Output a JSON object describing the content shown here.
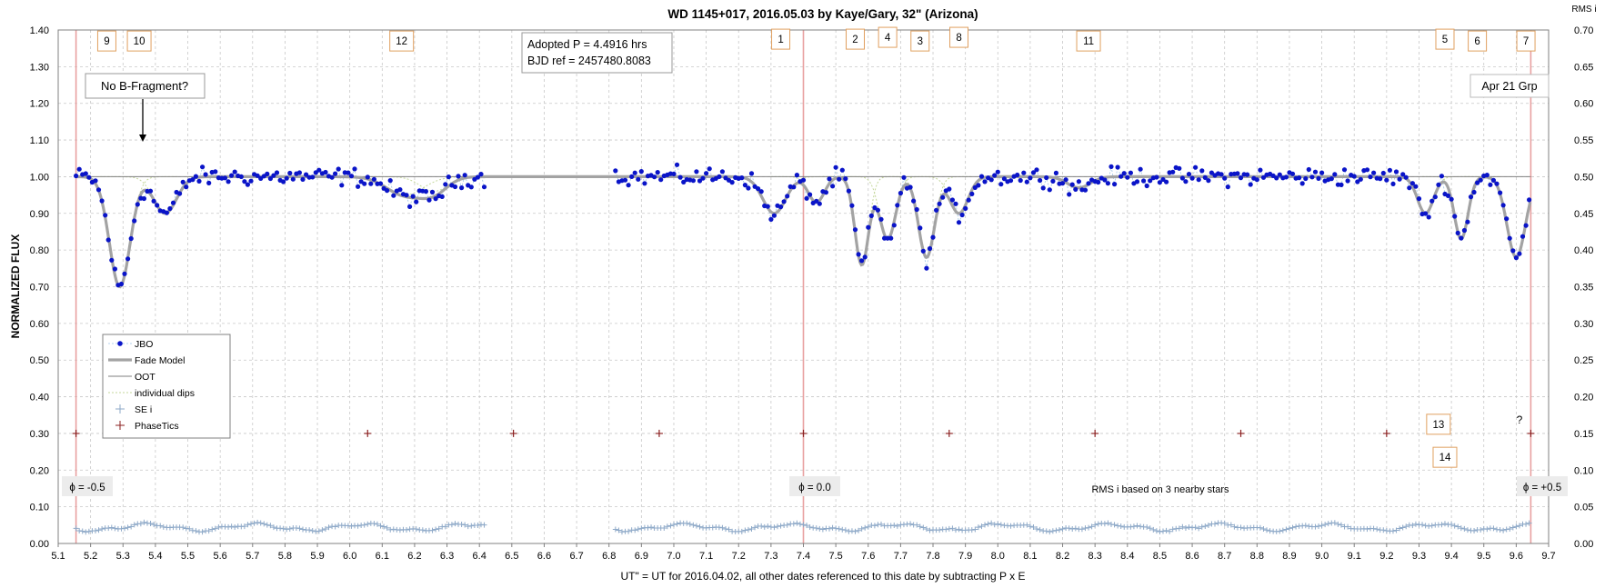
{
  "chart_data": {
    "type": "scatter",
    "title": "WD 1145+017,  2016.05.03  by Kaye/Gary, 32\" (Arizona)",
    "xlabel": "UT\" = UT for 2016.04.02, all other dates referenced to this date by subtracting P x E",
    "ylabel": "NORMALIZED  FLUX",
    "y2label": "RMS i",
    "xlim": [
      5.1,
      9.7
    ],
    "ylim": [
      0.0,
      1.4
    ],
    "y2lim": [
      0.0,
      0.7
    ],
    "xticks": [
      "5.1",
      "5.2",
      "5.3",
      "5.4",
      "5.5",
      "5.6",
      "5.7",
      "5.8",
      "5.9",
      "6.0",
      "6.1",
      "6.2",
      "6.3",
      "6.4",
      "6.5",
      "6.6",
      "6.7",
      "6.8",
      "6.9",
      "7.0",
      "7.1",
      "7.2",
      "7.3",
      "7.4",
      "7.5",
      "7.6",
      "7.7",
      "7.8",
      "7.9",
      "8.0",
      "8.1",
      "8.2",
      "8.3",
      "8.4",
      "8.5",
      "8.6",
      "8.7",
      "8.8",
      "8.9",
      "9.0",
      "9.1",
      "9.2",
      "9.3",
      "9.4",
      "9.5",
      "9.6",
      "9.7"
    ],
    "yticks": [
      "0.00",
      "0.10",
      "0.20",
      "0.30",
      "0.40",
      "0.50",
      "0.60",
      "0.70",
      "0.80",
      "0.90",
      "1.00",
      "1.10",
      "1.20",
      "1.30",
      "1.40"
    ],
    "y2ticks": [
      "0.00",
      "0.05",
      "0.10",
      "0.15",
      "0.20",
      "0.25",
      "0.30",
      "0.35",
      "0.40",
      "0.45",
      "0.50",
      "0.55",
      "0.60",
      "0.65",
      "0.70"
    ],
    "grid": true,
    "legend_position": "lower-left",
    "legend": [
      "JBO",
      "Fade Model",
      "OOT",
      "individual dips",
      "SE i",
      "PhaseTics"
    ],
    "colors": {
      "jbo": "#0a14c8",
      "fade_model": "#a3a3a3",
      "oot": "#7f7f7f",
      "dips": "#c4d79b",
      "sei": "#8ea9c8",
      "phasetics": "#8b2020",
      "phase_line": "#e8a0a0",
      "label_box": "#e0a060"
    },
    "phase_lines": [
      5.155,
      7.4,
      9.645
    ],
    "phase_tics": {
      "x": [
        5.155,
        5.605,
        6.055,
        6.505,
        6.955,
        7.4,
        7.85,
        8.3,
        8.75,
        9.2,
        9.645
      ],
      "y": 0.3
    },
    "dip_labels": [
      {
        "text": "9",
        "x": 5.25,
        "y": 1.37
      },
      {
        "text": "10",
        "x": 5.35,
        "y": 1.37
      },
      {
        "text": "12",
        "x": 6.16,
        "y": 1.37
      },
      {
        "text": "1",
        "x": 7.33,
        "y": 1.375
      },
      {
        "text": "2",
        "x": 7.56,
        "y": 1.375
      },
      {
        "text": "4",
        "x": 7.66,
        "y": 1.38
      },
      {
        "text": "3",
        "x": 7.76,
        "y": 1.37
      },
      {
        "text": "8",
        "x": 7.88,
        "y": 1.38
      },
      {
        "text": "11",
        "x": 8.28,
        "y": 1.37
      },
      {
        "text": "5",
        "x": 9.38,
        "y": 1.375
      },
      {
        "text": "6",
        "x": 9.48,
        "y": 1.37
      },
      {
        "text": "7",
        "x": 9.63,
        "y": 1.37
      },
      {
        "text": "13",
        "x": 9.36,
        "y": 0.325
      },
      {
        "text": "14",
        "x": 9.38,
        "y": 0.235
      }
    ],
    "annotations": {
      "no_b_fragment": "No B-Fragment?",
      "adopted_period": "Adopted P = 4.4916 hrs",
      "bjd_ref": "BJD ref = 2457480.8083",
      "apr21": "Apr 21 Grp",
      "question": "?",
      "rms_note": "RMS i based on 3 nearby stars",
      "phase_minus": "ϕ = -0.5",
      "phase_zero": "ϕ = 0.0",
      "phase_plus": "ϕ = +0.5"
    },
    "dips": [
      {
        "center": 5.29,
        "depth": 0.3,
        "width": 0.045
      },
      {
        "center": 5.43,
        "depth": 0.1,
        "width": 0.05
      },
      {
        "center": 6.17,
        "depth": 0.05,
        "width": 0.08
      },
      {
        "center": 6.26,
        "depth": 0.04,
        "width": 0.06
      },
      {
        "center": 7.31,
        "depth": 0.1,
        "width": 0.05
      },
      {
        "center": 7.44,
        "depth": 0.07,
        "width": 0.035
      },
      {
        "center": 7.58,
        "depth": 0.24,
        "width": 0.03
      },
      {
        "center": 7.66,
        "depth": 0.17,
        "width": 0.035
      },
      {
        "center": 7.78,
        "depth": 0.22,
        "width": 0.035
      },
      {
        "center": 7.88,
        "depth": 0.1,
        "width": 0.04
      },
      {
        "center": 8.25,
        "depth": 0.03,
        "width": 0.05
      },
      {
        "center": 9.32,
        "depth": 0.1,
        "width": 0.035
      },
      {
        "center": 9.43,
        "depth": 0.17,
        "width": 0.03
      },
      {
        "center": 9.6,
        "depth": 0.22,
        "width": 0.04
      }
    ],
    "series": [
      {
        "name": "JBO",
        "kind": "points",
        "segments": [
          [
            5.155,
            6.42
          ],
          [
            6.82,
            9.645
          ]
        ],
        "step": 0.01,
        "scatter": 0.03
      },
      {
        "name": "Fade Model",
        "kind": "line",
        "range": [
          5.155,
          9.645
        ]
      },
      {
        "name": "OOT",
        "kind": "line",
        "value": 1.0
      },
      {
        "name": "individual dips",
        "kind": "lines"
      },
      {
        "name": "SE i",
        "kind": "crosses",
        "axis": "y2",
        "segments": [
          [
            5.155,
            6.42
          ],
          [
            6.82,
            9.645
          ]
        ],
        "step": 0.01,
        "base": 0.022,
        "amplitude": 0.004
      }
    ]
  }
}
